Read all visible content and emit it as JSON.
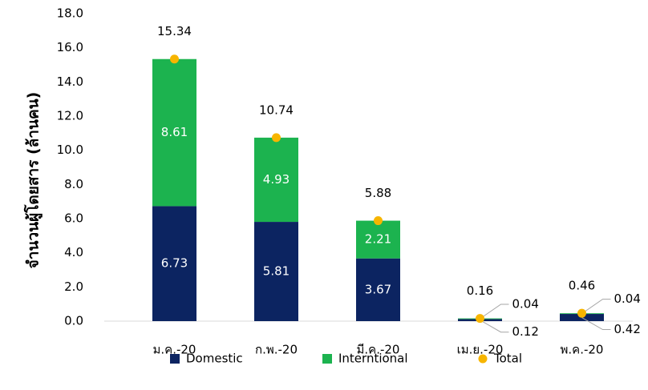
{
  "chart_data": {
    "type": "bar",
    "stacked": true,
    "ylabel": "จำนวนผู้โดยสาร (ล้านคน)",
    "categories": [
      "ม.ค.-20",
      "ก.พ.-20",
      "มี.ค.-20",
      "เม.ย.-20",
      "พ.ค.-20"
    ],
    "series": [
      {
        "name": "Domestic",
        "color": "#0c2461",
        "values": [
          6.73,
          5.81,
          3.67,
          0.12,
          0.42
        ]
      },
      {
        "name": "Interntional",
        "color": "#1cb34f",
        "values": [
          8.61,
          4.93,
          2.21,
          0.04,
          0.04
        ]
      },
      {
        "name": "Total",
        "color": "#f7b500",
        "type": "dot",
        "values": [
          15.34,
          10.74,
          5.88,
          0.16,
          0.46
        ]
      }
    ],
    "ylim": [
      0,
      18
    ],
    "yticks": [
      {
        "value": 0,
        "label": "0.0"
      },
      {
        "value": 2,
        "label": "2.0"
      },
      {
        "value": 4,
        "label": "4.0"
      },
      {
        "value": 6,
        "label": "6.0"
      },
      {
        "value": 8,
        "label": "8.0"
      },
      {
        "value": 10,
        "label": "10.0"
      },
      {
        "value": 12,
        "label": "12.0"
      },
      {
        "value": 14,
        "label": "14.0"
      },
      {
        "value": 16,
        "label": "16.0"
      },
      {
        "value": 18,
        "label": "18.0"
      }
    ],
    "grid": false,
    "legend": "bottom"
  }
}
